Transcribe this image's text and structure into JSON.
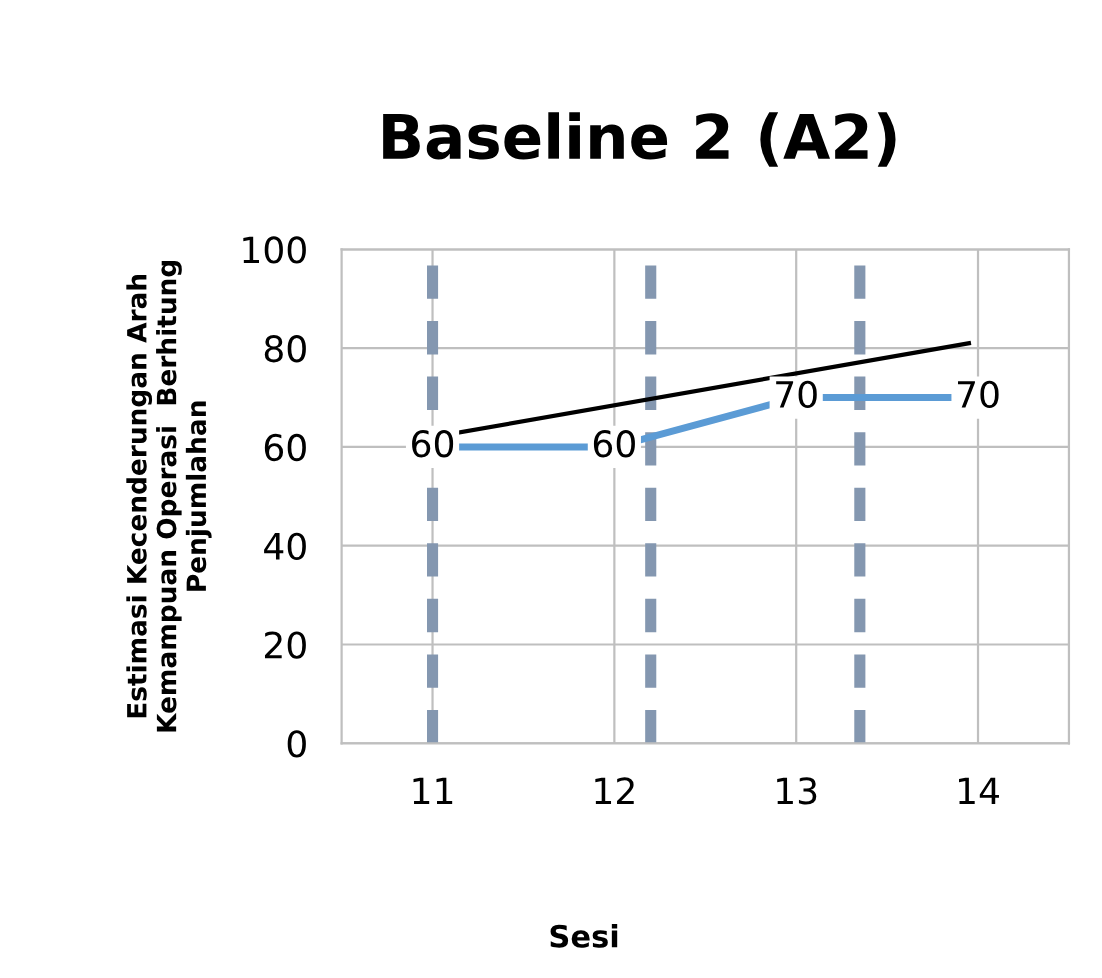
{
  "chart_data": {
    "type": "line",
    "title": "Baseline 2 (A2)",
    "xlabel": "Sesi",
    "ylabel": "Estimasi Kecenderungan Arah\nKemampuan Operasi  Berhitung\nPenjumlahan",
    "x": [
      11,
      12,
      13,
      14
    ],
    "series": [
      {
        "color": "#5b9bd5",
        "values": [
          60,
          60,
          70,
          70
        ],
        "marker": "diamond",
        "data_labels": true
      },
      {
        "type": "line",
        "color": "#000000",
        "x": [
          11,
          13.95
        ],
        "values": [
          62,
          81
        ],
        "marker": "none"
      }
    ],
    "xlim": [
      10.5,
      14.5
    ],
    "xticks": [
      11,
      12,
      13,
      14
    ],
    "ylim": [
      0,
      100
    ],
    "yticks": [
      0,
      20,
      40,
      60,
      80,
      100
    ],
    "grid": true,
    "legend": false,
    "ref_lines": [
      {
        "axis": "x",
        "value": 11,
        "label": null,
        "color": "#8497b0",
        "line_style": "dashed"
      },
      {
        "axis": "x",
        "value": 12.2,
        "label": null,
        "color": "#8497b0",
        "line_style": "dashed"
      },
      {
        "axis": "x",
        "value": 13.35,
        "label": null,
        "color": "#8497b0",
        "line_style": "dashed"
      }
    ]
  }
}
